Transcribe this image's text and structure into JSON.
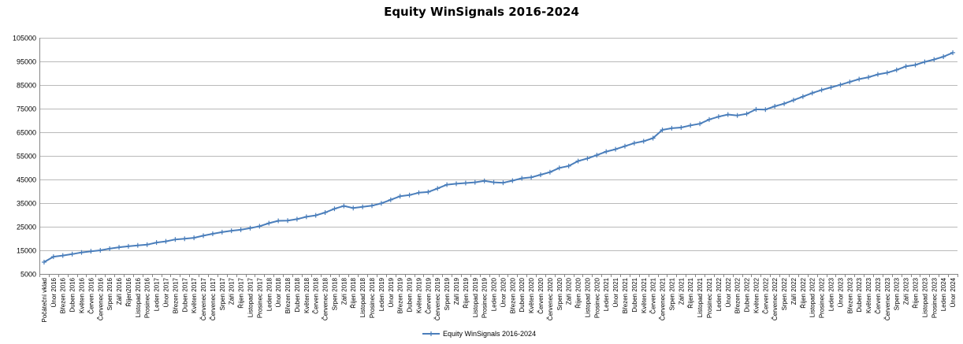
{
  "chart_data": {
    "type": "line",
    "title": "Equity WinSignals 2016-2024",
    "xlabel": "",
    "ylabel": "",
    "ylim": [
      5000,
      105000
    ],
    "yticks": [
      5000,
      15000,
      25000,
      35000,
      45000,
      55000,
      65000,
      75000,
      85000,
      95000,
      105000
    ],
    "grid": true,
    "legend_position": "bottom",
    "series_color": "#4a7ebb",
    "categories": [
      "Počáteční vklad",
      "Únor 2016",
      "Březen 2016",
      "Duben 2016",
      "Květen 2016",
      "Červen 2016",
      "Červenec 2016",
      "Srpen 2016",
      "Září 2016",
      "Říjen2016",
      "Listopad 2016",
      "Prosinec 2016",
      "Leden 2017",
      "Únor 2017",
      "Březen 2017",
      "Duben 2017",
      "Květen 2017",
      "Červenec 2017",
      "Červenec 1017",
      "Srpen 2017",
      "Září 2017",
      "Říjen 2017",
      "Listopad 2017",
      "Prosinec 2017",
      "Leden 2018",
      "Únor 2018",
      "Březen 2018",
      "Duben 2018",
      "Květen 2018",
      "Červen 2018",
      "Červenec 2018",
      "Srpen 2018",
      "Září 2018",
      "Říjen 2018",
      "Listopad 2018",
      "Prosinec 2018",
      "Leden 2019",
      "Únor 2019",
      "Březen 2019",
      "Duben 2019",
      "Květen 2019",
      "Červen 2019",
      "Červenec 2019",
      "Srpen 2019",
      "Září 2019",
      "Říjen 2019",
      "Listopad 2019",
      "Prosinec 2019",
      "Leden 2020",
      "Únor 2020",
      "Březen 2020",
      "Duben 2020",
      "Květen 2020",
      "Červen 2020",
      "Červenec 2020",
      "Srpen 2020",
      "Září 2020",
      "Říjen 2020",
      "Listopad 2020",
      "Prosinec 2020",
      "Leden 2021",
      "Únor 2021",
      "Březen 2021",
      "Duben 2021",
      "Květen 2021",
      "Červen 2021",
      "Červenec 2021",
      "Srpen 2021",
      "Září 2021",
      "Říjen 2021",
      "Listopad 2021",
      "Prosinec 2021",
      "Leden 2022",
      "Únor 2022",
      "Březen 2022",
      "Duben 2022",
      "Květen 2022",
      "Červen 2022",
      "Červenec 2022",
      "Srpen 2022",
      "Září 2022",
      "Říjen 2022",
      "Listopad 2022",
      "Prosinec 2022",
      "Leden 2023",
      "Únor 2023",
      "Březen 2023",
      "Duben 2023",
      "Květen 2023",
      "Červen 2023",
      "Červenec 2023",
      "Srpen 2023",
      "Září 2023",
      "Říjen 2023",
      "Listopad 2023",
      "Prosinec 2023",
      "Leden 2024",
      "Únor 2024"
    ],
    "series": [
      {
        "name": "Equity WinSignals 2016-2024",
        "values": [
          10000,
          12300,
          12800,
          13400,
          14100,
          14600,
          15000,
          15700,
          16300,
          16700,
          17100,
          17400,
          18300,
          18800,
          19600,
          19900,
          20300,
          21200,
          22000,
          22700,
          23300,
          23700,
          24400,
          25200,
          26500,
          27500,
          27600,
          28200,
          29200,
          29800,
          31000,
          32600,
          33800,
          32900,
          33400,
          33900,
          34900,
          36400,
          37900,
          38400,
          39400,
          39700,
          41200,
          42800,
          43200,
          43500,
          43800,
          44400,
          43800,
          43600,
          44500,
          45500,
          45900,
          47000,
          48100,
          49900,
          50700,
          52800,
          53900,
          55300,
          56800,
          57800,
          59100,
          60400,
          61200,
          62500,
          66000,
          66700,
          67000,
          67900,
          68600,
          70400,
          71600,
          72500,
          72100,
          72800,
          74700,
          74600,
          76000,
          77100,
          78600,
          80100,
          81600,
          82900,
          84000,
          85100,
          86300,
          87500,
          88300,
          89500,
          90200,
          91400,
          92900,
          93500,
          94800,
          95800,
          97000,
          98700
        ]
      }
    ]
  }
}
